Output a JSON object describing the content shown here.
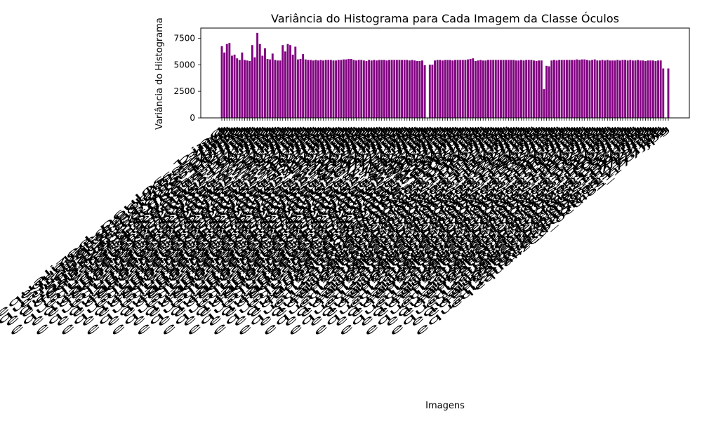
{
  "chart_data": {
    "type": "bar",
    "title": "Variância do Histograma para Cada Imagem da Classe Óculos",
    "xlabel": "Imagens",
    "ylabel": "Variância do Histograma",
    "ylim": [
      0,
      8450
    ],
    "yticks": [
      0,
      2500,
      5000,
      7500
    ],
    "grid": false,
    "bar_color": "#800080",
    "tick_label_prefix": "equalized_",
    "values": [
      6750,
      6150,
      6950,
      7050,
      5850,
      5950,
      5600,
      5450,
      6150,
      5450,
      5400,
      5350,
      6850,
      5700,
      8000,
      6950,
      5850,
      6550,
      5550,
      5500,
      6050,
      5450,
      5400,
      5400,
      6850,
      6250,
      6950,
      6850,
      5950,
      6700,
      5500,
      5550,
      6000,
      5500,
      5450,
      5450,
      5400,
      5450,
      5400,
      5450,
      5400,
      5450,
      5450,
      5450,
      5400,
      5400,
      5450,
      5450,
      5500,
      5500,
      5550,
      5550,
      5450,
      5400,
      5450,
      5450,
      5400,
      5350,
      5450,
      5400,
      5450,
      5400,
      5450,
      5450,
      5450,
      5400,
      5450,
      5450,
      5450,
      5450,
      5450,
      5450,
      5450,
      5450,
      5400,
      5450,
      5400,
      5350,
      5350,
      5400,
      4950,
      0,
      5000,
      5000,
      5400,
      5450,
      5450,
      5400,
      5450,
      5450,
      5450,
      5400,
      5450,
      5450,
      5450,
      5450,
      5450,
      5500,
      5550,
      5600,
      5350,
      5400,
      5450,
      5400,
      5400,
      5450,
      5450,
      5450,
      5450,
      5450,
      5450,
      5450,
      5450,
      5450,
      5450,
      5450,
      5400,
      5400,
      5450,
      5400,
      5450,
      5450,
      5450,
      5400,
      5350,
      5400,
      5400,
      2700,
      4900,
      4850,
      5400,
      5450,
      5400,
      5450,
      5450,
      5450,
      5450,
      5450,
      5450,
      5450,
      5500,
      5450,
      5500,
      5500,
      5450,
      5400,
      5450,
      5500,
      5400,
      5400,
      5450,
      5400,
      5450,
      5400,
      5400,
      5400,
      5450,
      5400,
      5450,
      5450,
      5400,
      5450,
      5400,
      5400,
      5450,
      5400,
      5400,
      5350,
      5400,
      5400,
      5400,
      5350,
      5400,
      5400,
      4650,
      0,
      4650
    ]
  }
}
